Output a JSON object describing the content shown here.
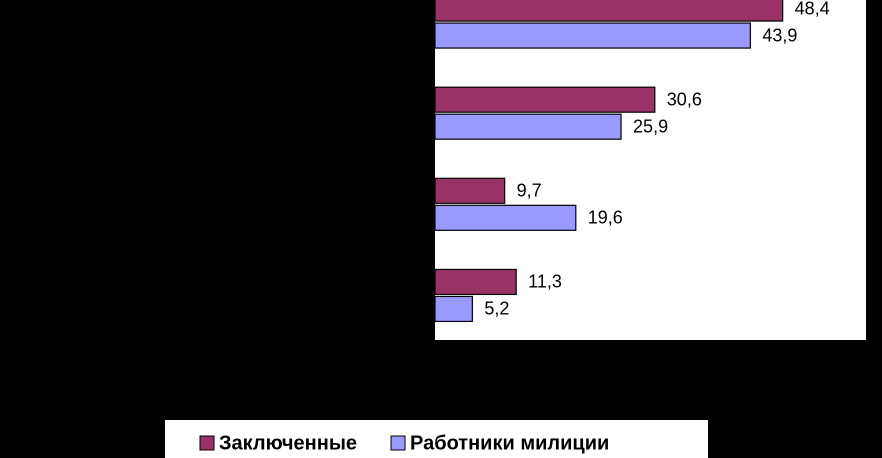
{
  "chart_data": {
    "type": "hbar",
    "categories": [
      null,
      null,
      null,
      null
    ],
    "series": [
      {
        "name": "Заключенные",
        "color": "#993366",
        "values": [
          48.4,
          30.6,
          9.7,
          11.3
        ],
        "value_labels": [
          "48,4",
          "30,6",
          "9,7",
          "11,3"
        ]
      },
      {
        "name": "Работники милиции",
        "color": "#9999ff",
        "values": [
          43.9,
          25.9,
          19.6,
          5.2
        ],
        "value_labels": [
          "43,9",
          "25,9",
          "19,6",
          "5,2"
        ]
      }
    ],
    "xlim": [
      0,
      60
    ],
    "legend": "bottom"
  }
}
